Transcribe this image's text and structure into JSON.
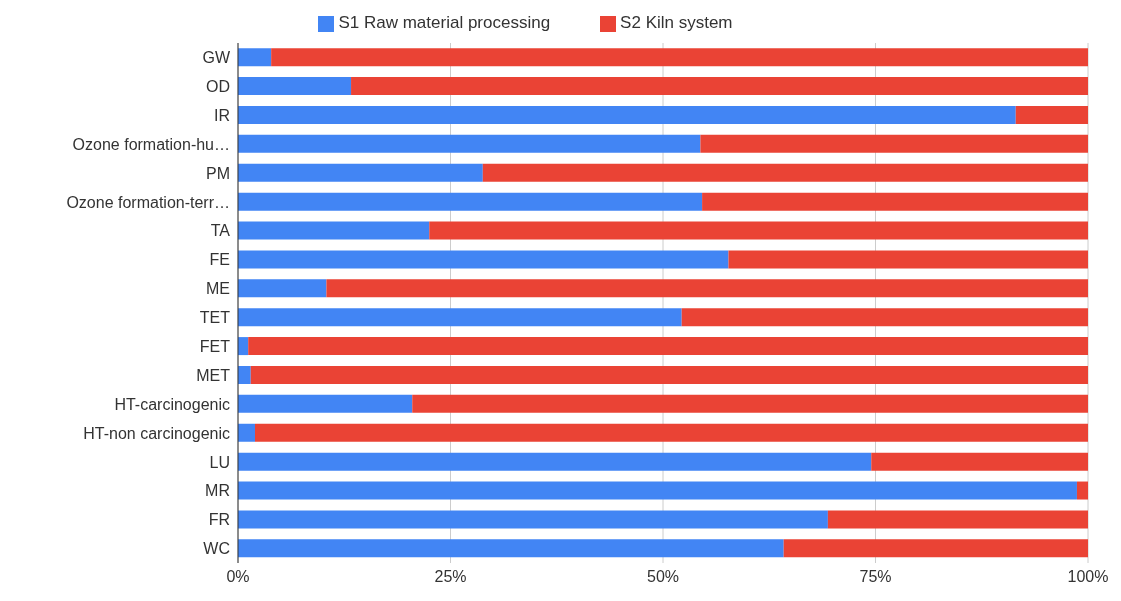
{
  "chart_data": {
    "type": "bar",
    "orientation": "horizontal",
    "stacked": true,
    "categories": [
      "GW",
      "OD",
      "IR",
      "Ozone formation-hu…",
      "PM",
      "Ozone formation-terr…",
      "TA",
      "FE",
      "ME",
      "TET",
      "FET",
      "MET",
      "HT-carcinogenic",
      "HT-non carcinogenic",
      "LU",
      "MR",
      "FR",
      "WC"
    ],
    "series": [
      {
        "name": "S1 Raw material processing",
        "color": "#4285f4",
        "values": [
          3.9,
          13.3,
          91.5,
          54.4,
          28.8,
          54.6,
          22.5,
          57.7,
          10.4,
          52.2,
          1.2,
          1.5,
          20.5,
          2.0,
          74.5,
          98.7,
          69.4,
          64.2
        ]
      },
      {
        "name": "S2 Kiln system",
        "color": "#ea4335",
        "values": [
          96.1,
          86.7,
          8.5,
          45.6,
          71.2,
          45.4,
          77.5,
          42.3,
          89.6,
          47.8,
          98.8,
          98.5,
          79.5,
          98.0,
          25.5,
          1.3,
          30.6,
          35.8
        ]
      }
    ],
    "xlim": [
      0,
      100
    ],
    "xticks": [
      {
        "value": 0,
        "label": "0%"
      },
      {
        "value": 25,
        "label": "25%"
      },
      {
        "value": 50,
        "label": "50%"
      },
      {
        "value": 75,
        "label": "75%"
      },
      {
        "value": 100,
        "label": "100%"
      }
    ],
    "grid": "x",
    "legend": "top"
  }
}
